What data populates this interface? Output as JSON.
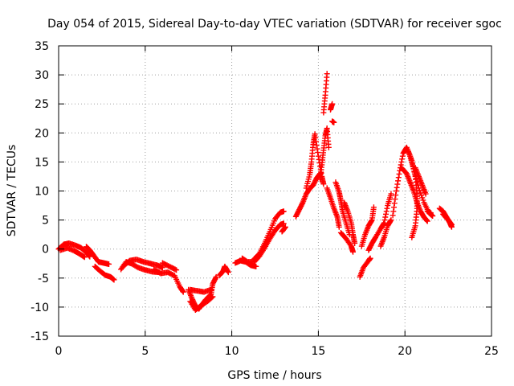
{
  "chart_data": {
    "type": "scatter",
    "title": "Day 054 of 2015, Sidereal Day-to-day VTEC variation (SDTVAR) for receiver sgoc",
    "xlabel": "GPS time / hours",
    "ylabel": "SDTVAR / TECUs",
    "xlim": [
      0,
      25
    ],
    "ylim": [
      -15,
      35
    ],
    "xticks": [
      0,
      5,
      10,
      15,
      20,
      25
    ],
    "yticks": [
      -15,
      -10,
      -5,
      0,
      5,
      10,
      15,
      20,
      25,
      30,
      35
    ],
    "xtick_labels": [
      "0",
      "5",
      "10",
      "15",
      "20",
      "25"
    ],
    "ytick_labels": [
      "-15",
      "-10",
      "-5",
      "0",
      "5",
      "10",
      "15",
      "20",
      "25",
      "30",
      "35"
    ],
    "grid": true,
    "legend": "none",
    "marker": "plus",
    "color": "#ff0000",
    "series": [
      {
        "name": "track-a",
        "points": [
          [
            0.0,
            0.0
          ],
          [
            0.3,
            0.8
          ],
          [
            0.6,
            1.0
          ],
          [
            1.0,
            0.6
          ],
          [
            1.3,
            0.2
          ],
          [
            1.6,
            -0.6
          ],
          [
            1.8,
            -1.3
          ]
        ]
      },
      {
        "name": "track-b",
        "points": [
          [
            0.1,
            -0.2
          ],
          [
            0.5,
            0.2
          ],
          [
            0.9,
            -0.3
          ],
          [
            1.2,
            -0.8
          ],
          [
            1.5,
            -1.4
          ]
        ]
      },
      {
        "name": "track-c",
        "points": [
          [
            1.6,
            0.4
          ],
          [
            1.8,
            -0.2
          ],
          [
            2.0,
            -1.0
          ],
          [
            2.3,
            -2.2
          ],
          [
            2.6,
            -2.4
          ],
          [
            2.9,
            -2.6
          ]
        ]
      },
      {
        "name": "track-d",
        "points": [
          [
            2.1,
            -3.0
          ],
          [
            2.4,
            -3.8
          ],
          [
            2.7,
            -4.5
          ],
          [
            3.0,
            -4.8
          ],
          [
            3.2,
            -5.3
          ]
        ]
      },
      {
        "name": "track-e",
        "points": [
          [
            3.6,
            -3.5
          ],
          [
            3.9,
            -2.2
          ],
          [
            4.2,
            -2.5
          ],
          [
            4.6,
            -3.2
          ],
          [
            5.0,
            -3.6
          ],
          [
            5.4,
            -3.9
          ],
          [
            5.8,
            -4.0
          ]
        ]
      },
      {
        "name": "track-f",
        "points": [
          [
            3.8,
            -2.8
          ],
          [
            4.1,
            -2.0
          ],
          [
            4.5,
            -1.8
          ],
          [
            4.9,
            -2.2
          ],
          [
            5.3,
            -2.5
          ],
          [
            5.7,
            -2.8
          ],
          [
            6.0,
            -3.2
          ]
        ]
      },
      {
        "name": "track-g",
        "points": [
          [
            5.5,
            -3.5
          ],
          [
            5.9,
            -4.2
          ],
          [
            6.3,
            -4.0
          ],
          [
            6.7,
            -4.6
          ],
          [
            7.0,
            -6.5
          ],
          [
            7.2,
            -7.4
          ]
        ]
      },
      {
        "name": "track-h",
        "points": [
          [
            6.0,
            -2.4
          ],
          [
            6.4,
            -3.0
          ],
          [
            6.8,
            -3.6
          ]
        ]
      },
      {
        "name": "track-i",
        "points": [
          [
            7.5,
            -7.0
          ],
          [
            7.7,
            -8.5
          ],
          [
            7.9,
            -9.8
          ],
          [
            8.1,
            -10.3
          ],
          [
            8.3,
            -9.5
          ],
          [
            8.5,
            -8.7
          ],
          [
            8.8,
            -7.8
          ],
          [
            8.9,
            -6.0
          ],
          [
            9.1,
            -4.8
          ]
        ]
      },
      {
        "name": "track-j",
        "points": [
          [
            7.6,
            -9.0
          ],
          [
            7.9,
            -10.5
          ],
          [
            8.2,
            -9.8
          ],
          [
            8.6,
            -9.0
          ],
          [
            8.9,
            -8.2
          ]
        ]
      },
      {
        "name": "track-k",
        "points": [
          [
            7.6,
            -7.0
          ],
          [
            8.0,
            -7.2
          ],
          [
            8.4,
            -7.4
          ],
          [
            8.8,
            -7.0
          ]
        ]
      },
      {
        "name": "track-l",
        "points": [
          [
            9.3,
            -4.5
          ],
          [
            9.5,
            -3.8
          ],
          [
            9.6,
            -3.0
          ],
          [
            9.8,
            -4.0
          ]
        ]
      },
      {
        "name": "track-m",
        "points": [
          [
            10.2,
            -2.4
          ],
          [
            10.5,
            -2.0
          ],
          [
            10.8,
            -2.2
          ],
          [
            11.1,
            -2.8
          ],
          [
            11.4,
            -3.0
          ]
        ]
      },
      {
        "name": "track-n",
        "points": [
          [
            10.6,
            -1.6
          ],
          [
            10.9,
            -2.2
          ],
          [
            11.3,
            -2.2
          ],
          [
            11.6,
            -1.2
          ],
          [
            11.9,
            0.2
          ],
          [
            12.2,
            1.8
          ],
          [
            12.5,
            3.2
          ],
          [
            12.8,
            4.2
          ],
          [
            13.0,
            4.4
          ]
        ]
      },
      {
        "name": "track-o",
        "points": [
          [
            11.3,
            -1.7
          ],
          [
            11.6,
            -0.8
          ],
          [
            11.9,
            1.0
          ],
          [
            12.2,
            3.0
          ],
          [
            12.5,
            5.2
          ],
          [
            12.8,
            6.3
          ],
          [
            13.0,
            6.5
          ]
        ]
      },
      {
        "name": "track-p",
        "points": [
          [
            12.9,
            3.0
          ],
          [
            13.1,
            3.8
          ]
        ]
      },
      {
        "name": "track-q",
        "points": [
          [
            13.7,
            5.6
          ],
          [
            13.9,
            6.8
          ],
          [
            14.1,
            8.0
          ],
          [
            14.3,
            9.5
          ],
          [
            14.5,
            10.4
          ],
          [
            14.7,
            11.0
          ],
          [
            14.9,
            12.2
          ],
          [
            15.1,
            13.0
          ]
        ]
      },
      {
        "name": "track-r",
        "points": [
          [
            14.3,
            10.5
          ],
          [
            14.5,
            12.8
          ],
          [
            14.6,
            15.0
          ],
          [
            14.7,
            18.0
          ],
          [
            14.8,
            19.8
          ],
          [
            15.0,
            16.0
          ],
          [
            15.2,
            12.5
          ],
          [
            15.3,
            11.2
          ]
        ]
      },
      {
        "name": "track-s",
        "points": [
          [
            15.1,
            12.0
          ],
          [
            15.2,
            14.5
          ],
          [
            15.3,
            17.0
          ],
          [
            15.4,
            19.5
          ],
          [
            15.5,
            20.8
          ],
          [
            15.6,
            17.5
          ]
        ]
      },
      {
        "name": "track-t",
        "points": [
          [
            15.3,
            23.5
          ],
          [
            15.4,
            26.5
          ],
          [
            15.5,
            30.2
          ]
        ]
      },
      {
        "name": "track-u",
        "points": [
          [
            15.7,
            24.0
          ],
          [
            15.8,
            25.0
          ]
        ]
      },
      {
        "name": "track-v",
        "points": [
          [
            15.8,
            22.0
          ],
          [
            15.9,
            21.8
          ]
        ]
      },
      {
        "name": "track-w",
        "points": [
          [
            15.5,
            10.5
          ],
          [
            15.7,
            8.8
          ],
          [
            15.9,
            7.0
          ],
          [
            16.1,
            5.5
          ],
          [
            16.2,
            3.8
          ]
        ]
      },
      {
        "name": "track-x",
        "points": [
          [
            16.0,
            11.5
          ],
          [
            16.2,
            9.8
          ],
          [
            16.3,
            8.3
          ],
          [
            16.4,
            6.5
          ],
          [
            16.6,
            4.5
          ],
          [
            16.8,
            2.5
          ]
        ]
      },
      {
        "name": "track-y",
        "points": [
          [
            16.5,
            8.0
          ],
          [
            16.7,
            6.5
          ],
          [
            16.9,
            4.5
          ],
          [
            17.0,
            2.5
          ],
          [
            17.1,
            1.0
          ]
        ]
      },
      {
        "name": "track-z",
        "points": [
          [
            16.3,
            2.8
          ],
          [
            16.6,
            1.8
          ],
          [
            16.9,
            0.5
          ],
          [
            17.0,
            -0.5
          ]
        ]
      },
      {
        "name": "track-aa",
        "points": [
          [
            17.4,
            -4.8
          ],
          [
            17.6,
            -3.2
          ],
          [
            17.9,
            -2.0
          ],
          [
            18.0,
            -1.6
          ]
        ]
      },
      {
        "name": "track-ab",
        "points": [
          [
            17.5,
            0.5
          ],
          [
            17.7,
            2.5
          ],
          [
            17.9,
            4.0
          ],
          [
            18.1,
            5.0
          ],
          [
            18.2,
            7.2
          ]
        ]
      },
      {
        "name": "track-ac",
        "points": [
          [
            17.9,
            -0.2
          ],
          [
            18.1,
            1.0
          ],
          [
            18.3,
            2.0
          ],
          [
            18.6,
            3.5
          ],
          [
            18.8,
            4.5
          ],
          [
            19.0,
            7.5
          ],
          [
            19.2,
            9.5
          ]
        ]
      },
      {
        "name": "track-ad",
        "points": [
          [
            18.6,
            0.5
          ],
          [
            18.8,
            2.0
          ],
          [
            19.0,
            4.0
          ],
          [
            19.2,
            5.0
          ]
        ]
      },
      {
        "name": "track-ae",
        "points": [
          [
            19.3,
            5.8
          ],
          [
            19.5,
            10.0
          ],
          [
            19.7,
            13.5
          ],
          [
            19.9,
            16.5
          ],
          [
            20.1,
            17.5
          ],
          [
            20.3,
            16.0
          ],
          [
            20.5,
            13.8
          ],
          [
            20.8,
            10.5
          ],
          [
            21.1,
            8.0
          ],
          [
            21.4,
            6.2
          ],
          [
            21.6,
            5.7
          ]
        ]
      },
      {
        "name": "track-af",
        "points": [
          [
            19.8,
            14.0
          ],
          [
            20.1,
            13.0
          ],
          [
            20.3,
            11.5
          ],
          [
            20.5,
            10.0
          ],
          [
            20.7,
            8.0
          ],
          [
            20.9,
            6.5
          ],
          [
            21.1,
            5.5
          ],
          [
            21.3,
            4.8
          ]
        ]
      },
      {
        "name": "track-ag",
        "points": [
          [
            20.2,
            16.8
          ],
          [
            20.4,
            15.2
          ],
          [
            20.6,
            12.5
          ],
          [
            20.7,
            9.5
          ],
          [
            20.7,
            7.0
          ],
          [
            20.6,
            4.0
          ],
          [
            20.4,
            2.0
          ]
        ]
      },
      {
        "name": "track-ah",
        "points": [
          [
            20.6,
            14.0
          ],
          [
            20.8,
            12.5
          ],
          [
            21.0,
            11.0
          ],
          [
            21.2,
            9.5
          ]
        ]
      },
      {
        "name": "track-ai",
        "points": [
          [
            21.3,
            6.5
          ],
          [
            21.5,
            6.2
          ]
        ]
      },
      {
        "name": "track-aj",
        "points": [
          [
            22.0,
            7.0
          ],
          [
            22.2,
            6.5
          ],
          [
            22.4,
            5.5
          ],
          [
            22.6,
            4.5
          ],
          [
            22.7,
            3.8
          ]
        ]
      },
      {
        "name": "track-ak",
        "points": [
          [
            22.2,
            6.0
          ],
          [
            22.5,
            5.0
          ],
          [
            22.7,
            4.2
          ]
        ]
      }
    ]
  }
}
